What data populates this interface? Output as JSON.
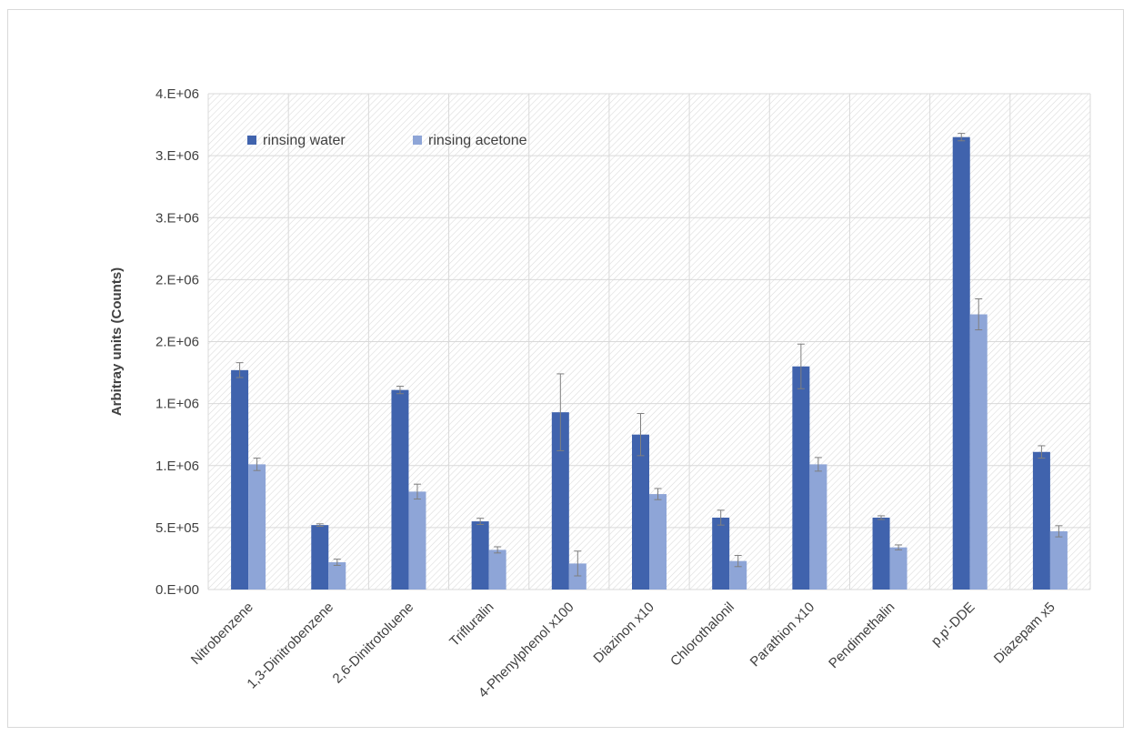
{
  "chart_data": {
    "type": "bar",
    "title": "",
    "xlabel": "",
    "ylabel": "Arbitray units (Counts)",
    "ylim": [
      0,
      4000000
    ],
    "ytick_values": [
      0,
      500000,
      1000000,
      1500000,
      2000000,
      2500000,
      3000000,
      3500000,
      4000000
    ],
    "ytick_labels": [
      "0.E+00",
      "5.E+05",
      "1.E+06",
      "1.E+06",
      "2.E+06",
      "2.E+06",
      "3.E+06",
      "3.E+06",
      "4.E+06"
    ],
    "grid": true,
    "legend_position": "top-left",
    "categories": [
      "Nitrobenzene",
      "1,3-Dinitrobenzene",
      "2,6-Dinitrotoluene",
      "Trifluralin",
      "4-Phenylphenol x100",
      "Diazinon x10",
      "Chlorothalonil",
      "Parathion x10",
      "Pendimethalin",
      "p,p'-DDE",
      "Diazepam x5"
    ],
    "series": [
      {
        "name": "rinsing water",
        "color": "#4063ad",
        "values": [
          1770000,
          520000,
          1610000,
          550000,
          1430000,
          1250000,
          580000,
          1800000,
          580000,
          3650000,
          1110000
        ],
        "errors": [
          60000,
          10000,
          30000,
          25000,
          310000,
          170000,
          60000,
          180000,
          15000,
          30000,
          50000
        ]
      },
      {
        "name": "rinsing acetone",
        "color": "#8ea5d7",
        "values": [
          1010000,
          220000,
          790000,
          320000,
          210000,
          770000,
          230000,
          1010000,
          340000,
          2220000,
          470000
        ],
        "errors": [
          50000,
          25000,
          60000,
          25000,
          100000,
          45000,
          45000,
          55000,
          20000,
          125000,
          45000
        ]
      }
    ]
  }
}
